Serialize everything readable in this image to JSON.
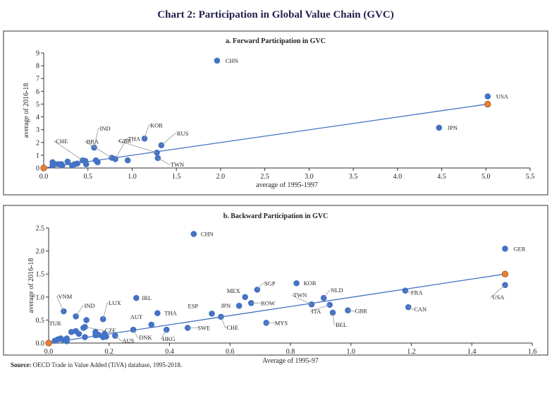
{
  "title": "Chart 2: Participation in Global Value Chain (GVC)",
  "source_label": "Source:",
  "source_text": " OECD Trade in Value Added (TiVA) database, 1995-2018.",
  "colors": {
    "point": "#4472c4",
    "highlight": "#ed7d31",
    "trend": "#4472c4",
    "title": "#1f1f4d"
  },
  "chart_data": [
    {
      "type": "scatter",
      "title": "a. Forward Participation in GVC",
      "xlabel": "average of 1995-1997",
      "ylabel": "average of 2016-18",
      "xlim": [
        0,
        5.5
      ],
      "ylim": [
        0,
        9
      ],
      "xticks": [
        "0.0",
        "0.5",
        "1.0",
        "1.5",
        "2.0",
        "2.5",
        "3.0",
        "3.5",
        "4.0",
        "4.5",
        "5.0",
        "5.5"
      ],
      "yticks": [
        "0",
        "1",
        "2",
        "3",
        "4",
        "5",
        "6",
        "7",
        "8",
        "9"
      ],
      "trendline": [
        [
          0,
          0
        ],
        [
          5.02,
          5.0
        ]
      ],
      "highlighted": [
        [
          0,
          0
        ],
        [
          5.02,
          5.0
        ]
      ],
      "points": [
        {
          "label": "CHN",
          "x": 1.96,
          "y": 8.4
        },
        {
          "label": "USA",
          "x": 5.02,
          "y": 5.6
        },
        {
          "label": "JPN",
          "x": 4.47,
          "y": 3.15
        },
        {
          "label": "IND",
          "x": 0.57,
          "y": 1.6
        },
        {
          "label": "KOR",
          "x": 1.14,
          "y": 2.3
        },
        {
          "label": "RUS",
          "x": 1.33,
          "y": 1.78
        },
        {
          "label": "THA",
          "x": 0.81,
          "y": 0.7
        },
        {
          "label": "BRA",
          "x": 0.77,
          "y": 0.8
        },
        {
          "label": "GBR",
          "x": 1.28,
          "y": 1.2
        },
        {
          "label": "TWN",
          "x": 1.29,
          "y": 0.78
        },
        {
          "label": "CHE",
          "x": 0.44,
          "y": 0.6
        },
        {
          "x": 0.1,
          "y": 0.45
        },
        {
          "x": 0.1,
          "y": 0.2
        },
        {
          "x": 0.13,
          "y": 0.3
        },
        {
          "x": 0.17,
          "y": 0.3
        },
        {
          "x": 0.2,
          "y": 0.3
        },
        {
          "x": 0.21,
          "y": 0.2
        },
        {
          "x": 0.27,
          "y": 0.5
        },
        {
          "x": 0.32,
          "y": 0.2
        },
        {
          "x": 0.35,
          "y": 0.3
        },
        {
          "x": 0.38,
          "y": 0.35
        },
        {
          "x": 0.47,
          "y": 0.55
        },
        {
          "x": 0.48,
          "y": 0.3
        },
        {
          "x": 0.59,
          "y": 0.6
        },
        {
          "x": 0.61,
          "y": 0.45
        },
        {
          "x": 0.95,
          "y": 0.6
        }
      ]
    },
    {
      "type": "scatter",
      "title": "b. Backward Participation in GVC",
      "xlabel": "Average of 1995-97",
      "ylabel": "average of 2016-18",
      "xlim": [
        0,
        1.6
      ],
      "ylim": [
        0,
        2.5
      ],
      "xticks": [
        "0.0",
        "0.2",
        "0.4",
        "0.6",
        "0.8",
        "1.0",
        "1.2",
        "1.4",
        "1.6"
      ],
      "yticks": [
        "0.0",
        "0.5",
        "1.0",
        "1.5",
        "2.0",
        "2.5"
      ],
      "trendline": [
        [
          0,
          0
        ],
        [
          1.51,
          1.5
        ]
      ],
      "highlighted": [
        [
          0,
          0
        ],
        [
          1.51,
          1.5
        ]
      ],
      "points": [
        {
          "label": "CHN",
          "x": 0.48,
          "y": 2.37
        },
        {
          "label": "GER",
          "x": 1.51,
          "y": 2.05
        },
        {
          "label": "USA",
          "x": 1.51,
          "y": 1.26
        },
        {
          "label": "KOR",
          "x": 0.82,
          "y": 1.3
        },
        {
          "label": "SGP",
          "x": 0.69,
          "y": 1.16
        },
        {
          "label": "MEX",
          "x": 0.65,
          "y": 1.0
        },
        {
          "label": "ROW",
          "x": 0.67,
          "y": 0.87
        },
        {
          "label": "JPN",
          "x": 0.63,
          "y": 0.81
        },
        {
          "label": "ESP",
          "x": 0.54,
          "y": 0.64
        },
        {
          "label": "CHE",
          "x": 0.57,
          "y": 0.57
        },
        {
          "label": "MYS",
          "x": 0.72,
          "y": 0.44
        },
        {
          "label": "TWN",
          "x": 0.87,
          "y": 0.84
        },
        {
          "label": "NLD",
          "x": 0.91,
          "y": 0.98
        },
        {
          "label": "ITA",
          "x": 0.93,
          "y": 0.83
        },
        {
          "label": "BEL",
          "x": 0.94,
          "y": 0.66
        },
        {
          "label": "GBR",
          "x": 0.99,
          "y": 0.71
        },
        {
          "label": "FRA",
          "x": 1.18,
          "y": 1.14
        },
        {
          "label": "CAN",
          "x": 1.19,
          "y": 0.78
        },
        {
          "label": "IRL",
          "x": 0.29,
          "y": 0.98
        },
        {
          "label": "THA",
          "x": 0.36,
          "y": 0.65
        },
        {
          "label": "AUT",
          "x": 0.34,
          "y": 0.4
        },
        {
          "label": "SWE",
          "x": 0.46,
          "y": 0.33
        },
        {
          "label": "HKG",
          "x": 0.39,
          "y": 0.29
        },
        {
          "label": "DNK",
          "x": 0.28,
          "y": 0.29
        },
        {
          "label": "AUS",
          "x": 0.22,
          "y": 0.16
        },
        {
          "label": "LUX",
          "x": 0.18,
          "y": 0.52
        },
        {
          "label": "CZE",
          "x": 0.12,
          "y": 0.35
        },
        {
          "label": "IND",
          "x": 0.09,
          "y": 0.58
        },
        {
          "label": "VNM",
          "x": 0.05,
          "y": 0.69
        },
        {
          "label": "TUR",
          "x": 0.09,
          "y": 0.26
        },
        {
          "x": 0.075,
          "y": 0.24
        },
        {
          "x": 0.1,
          "y": 0.2
        },
        {
          "x": 0.125,
          "y": 0.5
        },
        {
          "x": 0.115,
          "y": 0.33
        },
        {
          "x": 0.12,
          "y": 0.13
        },
        {
          "x": 0.155,
          "y": 0.24
        },
        {
          "x": 0.155,
          "y": 0.17
        },
        {
          "x": 0.165,
          "y": 0.18
        },
        {
          "x": 0.185,
          "y": 0.2
        },
        {
          "x": 0.18,
          "y": 0.13
        },
        {
          "x": 0.19,
          "y": 0.14
        },
        {
          "x": 0.03,
          "y": 0.08
        },
        {
          "x": 0.04,
          "y": 0.1
        },
        {
          "x": 0.05,
          "y": 0.06
        },
        {
          "x": 0.06,
          "y": 0.1
        },
        {
          "x": 0.02,
          "y": 0.05
        },
        {
          "x": 0.06,
          "y": 0.04
        }
      ]
    }
  ]
}
